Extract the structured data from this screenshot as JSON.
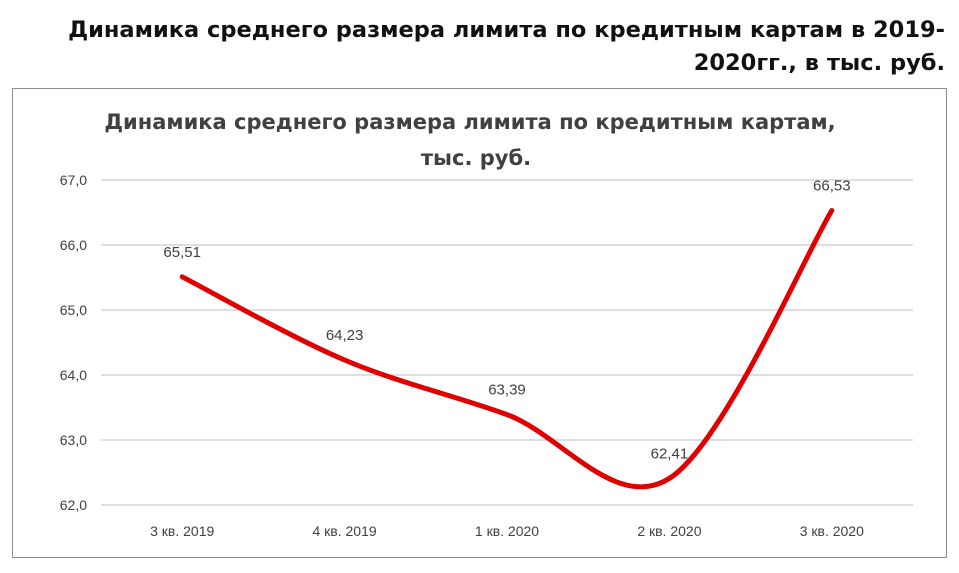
{
  "page_title": "Динамика среднего размера лимита по кредитным картам в 2019-2020гг., в тыс. руб.",
  "chart_data": {
    "type": "line",
    "title_line1": "Динамика среднего размера лимита по кредитным картам,",
    "title_line2": "тыс. руб.",
    "categories": [
      "3 кв. 2019",
      "4 кв. 2019",
      "1 кв. 2020",
      "2 кв. 2020",
      "3 кв. 2020"
    ],
    "values": [
      65.51,
      64.23,
      63.39,
      62.41,
      66.53
    ],
    "data_labels": [
      "65,51",
      "64,23",
      "63,39",
      "62,41",
      "66,53"
    ],
    "ylim": [
      62,
      67
    ],
    "yticks": [
      62,
      63,
      64,
      65,
      66,
      67
    ],
    "ytick_labels": [
      "62,0",
      "63,0",
      "64,0",
      "65,0",
      "66,0",
      "67,0"
    ],
    "xlabel": "",
    "ylabel": "",
    "grid": true,
    "smooth": true,
    "line_color": "#e00000",
    "grid_color": "#bfbfbf"
  }
}
